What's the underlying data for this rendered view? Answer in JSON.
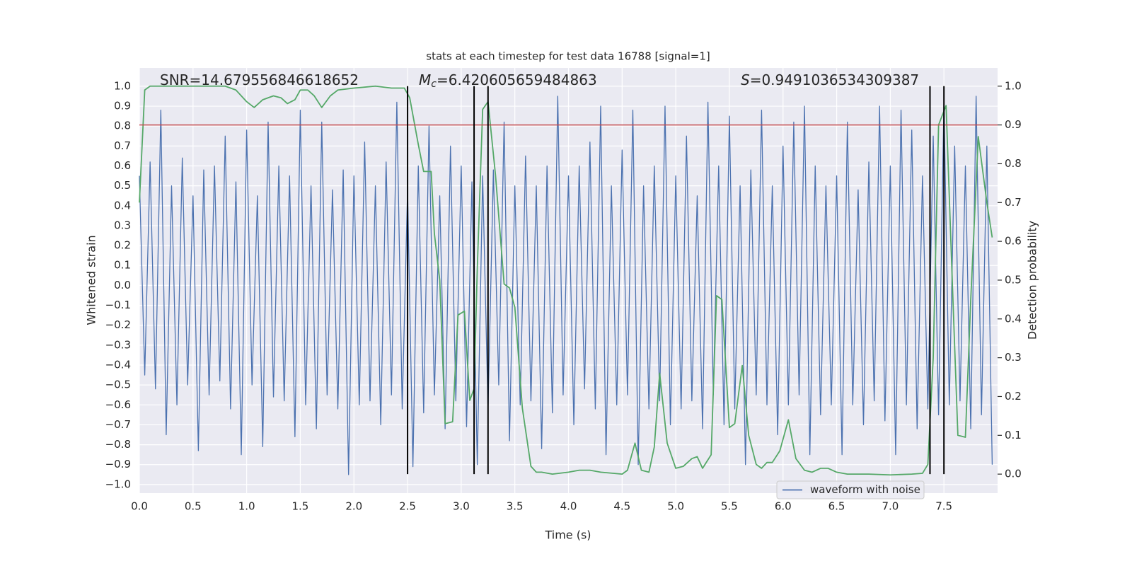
{
  "chart_data": {
    "type": "line",
    "title": "stats at each timestep for test data 16788 [signal=1]",
    "xlabel": "Time (s)",
    "ylabel": "Whitened strain",
    "y2label": "Detection probability",
    "annotations": [
      {
        "text": "SNR=14.679556846618652"
      },
      {
        "symbol": "M",
        "subscript": "c",
        "text": "=6.420605659484863"
      },
      {
        "symbol": "S",
        "text": "=0.9491036534309387"
      }
    ],
    "xlim": [
      0,
      8
    ],
    "ylim": [
      -1.043,
      1.092
    ],
    "y2lim": [
      -0.049,
      1.047
    ],
    "xticks": [
      {
        "value": 0,
        "label": "0.0"
      },
      0.5,
      {
        "value": 1,
        "label": "1.0"
      },
      1.5,
      {
        "value": 2,
        "label": "2.0"
      },
      2.5,
      {
        "value": 3,
        "label": "3.0"
      },
      3.5,
      {
        "value": 4,
        "label": "4.0"
      },
      4.5,
      {
        "value": 5,
        "label": "5.0"
      },
      5.5,
      {
        "value": 6,
        "label": "6.0"
      },
      6.5,
      {
        "value": 7,
        "label": "7.0"
      },
      7.5
    ],
    "yticks": [
      {
        "value": 1,
        "label": "1.0"
      },
      0.9,
      0.8,
      0.7,
      0.6,
      0.5,
      0.4,
      0.3,
      0.2,
      0.1,
      {
        "value": 0,
        "label": "0.0"
      },
      {
        "value": -0.1,
        "label": "−0.1"
      },
      {
        "value": -0.2,
        "label": "−0.2"
      },
      {
        "value": -0.3,
        "label": "−0.3"
      },
      {
        "value": -0.4,
        "label": "−0.4"
      },
      {
        "value": -0.5,
        "label": "−0.5"
      },
      {
        "value": -0.6,
        "label": "−0.6"
      },
      {
        "value": -0.7,
        "label": "−0.7"
      },
      {
        "value": -0.8,
        "label": "−0.8"
      },
      {
        "value": -0.9,
        "label": "−0.9"
      },
      {
        "value": -1,
        "label": "−1.0"
      }
    ],
    "y2ticks": [
      {
        "value": 1,
        "label": "1.0"
      },
      0.9,
      0.8,
      0.7,
      0.6,
      0.5,
      0.4,
      0.3,
      0.2,
      0.1,
      {
        "value": 0,
        "label": "0.0"
      }
    ],
    "grid": true,
    "legend": "lower right",
    "threshold": {
      "value": 0.9,
      "axis": "y2",
      "color": "#c44e52"
    },
    "vlines": {
      "x": [
        2.5,
        3.12,
        3.25,
        7.37,
        7.5
      ],
      "color": "#000000"
    },
    "series": [
      {
        "name": "waveform with noise",
        "color": "#4c72b0",
        "x": [
          0,
          0.05,
          0.1,
          0.15,
          0.2,
          0.25,
          0.3,
          0.35,
          0.4,
          0.45,
          0.5,
          0.55,
          0.6,
          0.65,
          0.7,
          0.75,
          0.8,
          0.85,
          0.9,
          0.95,
          1,
          1.05,
          1.1,
          1.15,
          1.2,
          1.25,
          1.3,
          1.35,
          1.4,
          1.45,
          1.5,
          1.55,
          1.6,
          1.65,
          1.7,
          1.75,
          1.8,
          1.85,
          1.9,
          1.95,
          2,
          2.05,
          2.1,
          2.15,
          2.2,
          2.25,
          2.3,
          2.35,
          2.4,
          2.45,
          2.5,
          2.55,
          2.6,
          2.65,
          2.7,
          2.75,
          2.8,
          2.85,
          2.9,
          2.95,
          3,
          3.05,
          3.1,
          3.15,
          3.2,
          3.25,
          3.3,
          3.35,
          3.4,
          3.45,
          3.5,
          3.55,
          3.6,
          3.65,
          3.7,
          3.75,
          3.8,
          3.85,
          3.9,
          3.95,
          4,
          4.05,
          4.1,
          4.15,
          4.2,
          4.25,
          4.3,
          4.35,
          4.4,
          4.45,
          4.5,
          4.55,
          4.6,
          4.65,
          4.7,
          4.75,
          4.8,
          4.85,
          4.9,
          4.95,
          5,
          5.05,
          5.1,
          5.15,
          5.2,
          5.25,
          5.3,
          5.35,
          5.4,
          5.45,
          5.5,
          5.55,
          5.6,
          5.65,
          5.7,
          5.75,
          5.8,
          5.85,
          5.9,
          5.95,
          6,
          6.05,
          6.1,
          6.15,
          6.2,
          6.25,
          6.3,
          6.35,
          6.4,
          6.45,
          6.5,
          6.55,
          6.6,
          6.65,
          6.7,
          6.75,
          6.8,
          6.85,
          6.9,
          6.95,
          7,
          7.05,
          7.1,
          7.15,
          7.2,
          7.25,
          7.3,
          7.35,
          7.4,
          7.45,
          7.5,
          7.55,
          7.6,
          7.65,
          7.7,
          7.75,
          7.8,
          7.85,
          7.9,
          7.95
        ],
        "values": [
          0.55,
          -0.45,
          0.62,
          -0.52,
          0.88,
          -0.75,
          0.5,
          -0.6,
          0.64,
          -0.5,
          0.45,
          -0.83,
          0.58,
          -0.55,
          0.6,
          -0.48,
          0.75,
          -0.62,
          0.52,
          -0.85,
          0.78,
          -0.5,
          0.45,
          -0.81,
          0.82,
          -0.56,
          0.6,
          -0.58,
          0.55,
          -0.76,
          0.88,
          -0.6,
          0.5,
          -0.72,
          0.82,
          -0.55,
          0.48,
          -0.62,
          0.58,
          -0.95,
          0.55,
          -0.6,
          0.72,
          -0.58,
          0.5,
          -0.7,
          0.62,
          -0.55,
          0.92,
          -0.62,
          0.48,
          -0.91,
          0.6,
          -0.64,
          0.8,
          -0.55,
          0.45,
          -0.72,
          0.7,
          -0.58,
          0.6,
          -0.71,
          0.52,
          -0.9,
          0.55,
          -0.62,
          0.58,
          -0.5,
          0.82,
          -0.78,
          0.5,
          -0.6,
          0.65,
          -0.58,
          0.5,
          -0.82,
          0.6,
          -0.64,
          0.95,
          -0.55,
          0.55,
          -0.7,
          0.6,
          -0.52,
          0.72,
          -0.62,
          0.9,
          -0.85,
          0.5,
          -0.6,
          0.68,
          -0.55,
          0.88,
          -0.9,
          0.5,
          -0.62,
          0.6,
          -0.58,
          0.9,
          -0.7,
          0.55,
          -0.62,
          0.75,
          -0.58,
          0.45,
          -0.72,
          0.92,
          -0.55,
          0.6,
          -0.7,
          0.85,
          -0.62,
          0.5,
          -0.9,
          0.58,
          -0.55,
          0.88,
          -0.6,
          0.5,
          -0.75,
          0.7,
          -0.6,
          0.82,
          -0.55,
          0.9,
          -0.85,
          0.6,
          -0.65,
          0.5,
          -0.6,
          0.55,
          -0.85,
          0.82,
          -0.6,
          0.48,
          -0.7,
          0.62,
          -0.58,
          0.9,
          -0.68,
          0.6,
          -0.85,
          0.88,
          -0.6,
          0.78,
          -0.72,
          0.55,
          -0.62,
          0.75,
          -0.65,
          0.92,
          -0.6,
          0.7,
          -0.58,
          0.6,
          -0.72,
          0.95,
          -0.65,
          0.7,
          -0.9
        ]
      },
      {
        "color": "#55a868",
        "axis": "y2",
        "x": [
          0,
          0.05,
          0.1,
          0.3,
          0.5,
          0.8,
          0.9,
          1,
          1.07,
          1.15,
          1.25,
          1.32,
          1.38,
          1.45,
          1.5,
          1.57,
          1.63,
          1.7,
          1.78,
          1.85,
          2,
          2.2,
          2.35,
          2.47,
          2.52,
          2.6,
          2.65,
          2.72,
          2.75,
          2.8,
          2.85,
          2.92,
          2.97,
          3.03,
          3.08,
          3.12,
          3.15,
          3.2,
          3.25,
          3.32,
          3.4,
          3.45,
          3.5,
          3.57,
          3.65,
          3.7,
          3.75,
          3.85,
          4,
          4.1,
          4.2,
          4.3,
          4.5,
          4.55,
          4.62,
          4.68,
          4.75,
          4.8,
          4.85,
          4.92,
          5,
          5.07,
          5.15,
          5.2,
          5.25,
          5.33,
          5.38,
          5.43,
          5.5,
          5.55,
          5.62,
          5.68,
          5.75,
          5.8,
          5.85,
          5.9,
          5.97,
          6.05,
          6.12,
          6.2,
          6.27,
          6.35,
          6.42,
          6.5,
          6.6,
          6.8,
          7,
          7.2,
          7.3,
          7.35,
          7.4,
          7.45,
          7.52,
          7.58,
          7.63,
          7.7,
          7.75,
          7.82,
          7.9,
          7.95
        ],
        "values": [
          0.7,
          0.99,
          1,
          1,
          1,
          1,
          0.99,
          0.96,
          0.945,
          0.965,
          0.975,
          0.97,
          0.955,
          0.965,
          0.99,
          0.99,
          0.975,
          0.945,
          0.975,
          0.99,
          0.995,
          1,
          0.995,
          0.995,
          0.97,
          0.85,
          0.78,
          0.78,
          0.62,
          0.5,
          0.13,
          0.135,
          0.41,
          0.42,
          0.19,
          0.22,
          0.53,
          0.94,
          0.96,
          0.77,
          0.49,
          0.48,
          0.43,
          0.17,
          0.02,
          0.005,
          0.005,
          0,
          0.005,
          0.01,
          0.01,
          0.005,
          0,
          0.01,
          0.08,
          0.01,
          0.005,
          0.07,
          0.26,
          0.08,
          0.015,
          0.02,
          0.04,
          0.045,
          0.015,
          0.05,
          0.46,
          0.45,
          0.12,
          0.13,
          0.28,
          0.1,
          0.025,
          0.015,
          0.03,
          0.03,
          0.06,
          0.14,
          0.04,
          0.01,
          0.005,
          0.015,
          0.015,
          0.005,
          0,
          0,
          -0.002,
          0,
          0.002,
          0.025,
          0.3,
          0.9,
          0.95,
          0.48,
          0.1,
          0.095,
          0.45,
          0.87,
          0.7,
          0.61
        ]
      }
    ]
  }
}
